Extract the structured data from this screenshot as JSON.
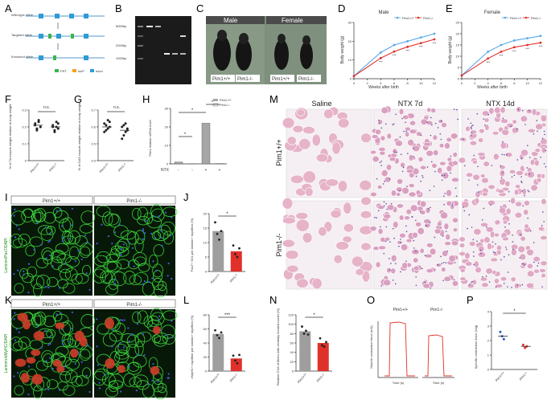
{
  "panels": {
    "A": "A",
    "B": "B",
    "C": "C",
    "D": "D",
    "E": "E",
    "F": "F",
    "G": "G",
    "H": "H",
    "I": "I",
    "J": "J",
    "K": "K",
    "L": "L",
    "M": "M",
    "N": "N",
    "O": "O",
    "P": "P"
  },
  "panelA": {
    "rows": [
      "Wild-type allele",
      "Targeted allele",
      "Knockout allele"
    ],
    "legend": [
      "FRT",
      "loxP",
      "exon"
    ]
  },
  "panelB": {
    "markers": [
      "5000bp",
      "2000bp",
      "1000bp"
    ]
  },
  "panelC": {
    "male": "Male",
    "female": "Female",
    "labels": [
      "Pim1+/+",
      "Pim1-/-",
      "Pim1+/+",
      "Pim1-/-"
    ]
  },
  "panelD": {
    "title": "Male",
    "xlabel": "Weeks after birth",
    "ylabel": "Body weight (g)",
    "legend": [
      "Pim1+/+",
      "Pim1-/-"
    ],
    "sig": [
      "***",
      "***",
      "***",
      "***",
      "***"
    ]
  },
  "panelE": {
    "title": "Female",
    "xlabel": "Weeks after birth",
    "ylabel": "Body weight (g)",
    "legend": [
      "Pim1+/+",
      "Pim1-/-"
    ],
    "sig": [
      "***",
      "***",
      "***",
      "***",
      "***"
    ]
  },
  "panelF": {
    "ylabel": "% of TA muscle weight relative to body weight",
    "ns": "n.s.",
    "xcats": [
      "Pim1+/+",
      "Pim1-/-"
    ]
  },
  "panelG": {
    "ylabel": "% of GAS muscle weight relative to body weight",
    "ns": "n.s.",
    "xcats": [
      "Pim1+/+",
      "Pim1-/-"
    ]
  },
  "panelH": {
    "ylabel": "Pim1 relative mRNA level",
    "legend": [
      "Pim1+/+",
      "Pim1-/-"
    ],
    "ntx": "NTX",
    "ntxSigns": [
      "-",
      "-",
      "+",
      "+"
    ],
    "sig": "*"
  },
  "panelI": {
    "left": "Pim1+/+",
    "right": "Pim1-/-",
    "stain": "Laminin/Pax7/DAPI"
  },
  "panelJ": {
    "ylabel": "Pax7+ SCs per laminin+ myofiber (%)",
    "sig": "*",
    "xcats": [
      "Pim1+/+",
      "Pim1-/-"
    ]
  },
  "panelK": {
    "left": "Pim1+/+",
    "right": "Pim1-/-",
    "stain": "Laminin/eMyHC/DAPI"
  },
  "panelL": {
    "ylabel": "eMyHC+ myofiber per laminin+ myofiber (%)",
    "sig": "***",
    "xcats": [
      "Pim1+/+",
      "Pim1-/-"
    ]
  },
  "panelM": {
    "cols": [
      "Saline",
      "NTX 7d",
      "NTX 14d"
    ],
    "rows": [
      "Pim1+/+",
      "Pim1-/-"
    ]
  },
  "panelN": {
    "ylabel": "Relative CSA of fibers with centrally located nuclei (%)",
    "sig": "*",
    "xcats": [
      "Pim1+/+",
      "Pim1-/-"
    ]
  },
  "panelO": {
    "ylabel": "Muscle contraction force (mN)",
    "left": "Pim1+/+",
    "right": "Pim1-/-",
    "xlabel": "Time (s)"
  },
  "panelP": {
    "ylabel": "Specific contraction force (N/g)",
    "sig": "*",
    "xcats": [
      "Pim1+/+",
      "Pim1-/-"
    ]
  },
  "chart_data": [
    {
      "type": "line",
      "panel": "D",
      "x": [
        0,
        4,
        6,
        8,
        10,
        12
      ],
      "series": [
        {
          "name": "Pim1+/+",
          "values": [
            1.5,
            14,
            18,
            20,
            22,
            24
          ]
        },
        {
          "name": "Pim1-/-",
          "values": [
            1.4,
            11,
            14.5,
            17,
            19,
            21
          ]
        }
      ],
      "xlabel": "Weeks after birth",
      "ylabel": "Body weight (g)",
      "ylim": [
        0,
        30
      ],
      "xticks": [
        0,
        2,
        4,
        6,
        8,
        10,
        12
      ],
      "yticks": [
        0,
        10,
        20,
        30
      ]
    },
    {
      "type": "line",
      "panel": "E",
      "x": [
        0,
        4,
        6,
        8,
        10,
        12
      ],
      "series": [
        {
          "name": "Pim1+/+",
          "values": [
            1.5,
            12,
            15,
            17,
            18,
            19
          ]
        },
        {
          "name": "Pim1-/-",
          "values": [
            1.4,
            9,
            12,
            14,
            15,
            16
          ]
        }
      ],
      "xlabel": "Weeks after birth",
      "ylabel": "Body weight (g)",
      "ylim": [
        0,
        25
      ],
      "xticks": [
        0,
        2,
        4,
        6,
        8,
        10,
        12
      ],
      "yticks": [
        0,
        5,
        10,
        15,
        20,
        25
      ]
    },
    {
      "type": "scatter",
      "panel": "F",
      "categories": [
        "Pim1+/+",
        "Pim1-/-"
      ],
      "values": [
        [
          0.22,
          0.19,
          0.24,
          0.2,
          0.21,
          0.18,
          0.23,
          0.2
        ],
        [
          0.2,
          0.17,
          0.23,
          0.19,
          0.21,
          0.18,
          0.2,
          0.22
        ]
      ],
      "means": [
        0.21,
        0.2
      ],
      "ylim": [
        0,
        0.3
      ],
      "yticks": [
        0,
        0.1,
        0.2,
        0.3
      ]
    },
    {
      "type": "scatter",
      "panel": "G",
      "categories": [
        "Pim1+/+",
        "Pim1-/-"
      ],
      "values": [
        [
          0.62,
          0.58,
          0.64,
          0.6,
          0.57,
          0.61,
          0.59,
          0.63
        ],
        [
          0.6,
          0.55,
          0.62,
          0.58,
          0.53,
          0.61,
          0.57,
          0.59
        ]
      ],
      "means": [
        0.6,
        0.58
      ],
      "ylim": [
        0.4,
        0.7
      ],
      "yticks": [
        0.4,
        0.5,
        0.6,
        0.7
      ]
    },
    {
      "type": "bar",
      "panel": "H",
      "categories": [
        "1",
        "2",
        "3",
        "4"
      ],
      "values": [
        1,
        0.1,
        22,
        0.3
      ],
      "ylim": [
        0,
        30
      ],
      "yticks": [
        0,
        10,
        20,
        30
      ]
    },
    {
      "type": "bar",
      "panel": "J",
      "categories": [
        "Pim1+/+",
        "Pim1-/-"
      ],
      "values": [
        14,
        7
      ],
      "points": [
        [
          17,
          13,
          11,
          14
        ],
        [
          9,
          6,
          5,
          8
        ]
      ],
      "ylim": [
        0,
        20
      ],
      "yticks": [
        0,
        5,
        10,
        15,
        20
      ]
    },
    {
      "type": "bar",
      "panel": "L",
      "categories": [
        "Pim1+/+",
        "Pim1-/-"
      ],
      "values": [
        53,
        18
      ],
      "points": [
        [
          58,
          51,
          47,
          55
        ],
        [
          22,
          15,
          11,
          23
        ]
      ],
      "ylim": [
        0,
        80
      ],
      "yticks": [
        0,
        20,
        40,
        60,
        80
      ]
    },
    {
      "type": "bar",
      "panel": "N",
      "categories": [
        "Pim1+/+",
        "Pim1-/-"
      ],
      "values": [
        85,
        60
      ],
      "points": [
        [
          95,
          80,
          86,
          78
        ],
        [
          70,
          55,
          52,
          62
        ]
      ],
      "ylim": [
        0,
        120
      ],
      "yticks": [
        0,
        20,
        40,
        60,
        80,
        100,
        120
      ]
    },
    {
      "type": "scatter",
      "panel": "P",
      "categories": [
        "Pim1+/+",
        "Pim1-/-"
      ],
      "values": [
        [
          2.6,
          2.3,
          2.1
        ],
        [
          1.7,
          1.5,
          1.6
        ]
      ],
      "means": [
        2.3,
        1.6
      ],
      "ylim": [
        0,
        4
      ],
      "yticks": [
        0,
        1,
        2,
        3,
        4
      ]
    }
  ]
}
